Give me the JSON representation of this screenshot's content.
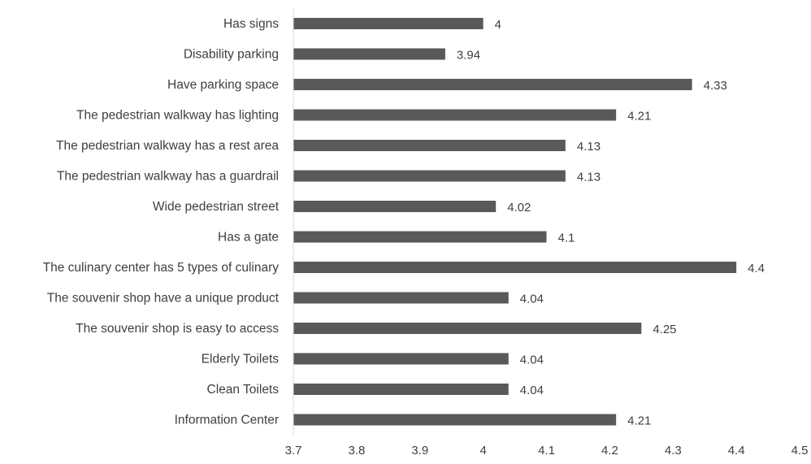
{
  "chart_data": {
    "type": "bar",
    "orientation": "horizontal",
    "title": "",
    "xlabel": "",
    "ylabel": "",
    "categories": [
      "Has signs",
      "Disability parking",
      "Have parking space",
      "The pedestrian walkway has lighting",
      "The pedestrian walkway has a rest area",
      "The pedestrian walkway has a guardrail",
      "Wide pedestrian street",
      "Has a gate",
      "The culinary center has 5 types of culinary",
      "The souvenir shop have a unique product",
      "The souvenir shop is easy to access",
      "Elderly Toilets",
      "Clean Toilets",
      "Information Center"
    ],
    "values": [
      4,
      3.94,
      4.33,
      4.21,
      4.13,
      4.13,
      4.02,
      4.1,
      4.4,
      4.04,
      4.25,
      4.04,
      4.04,
      4.21
    ],
    "value_labels": [
      "4",
      "3.94",
      "4.33",
      "4.21",
      "4.13",
      "4.13",
      "4.02",
      "4.1",
      "4.4",
      "4.04",
      "4.25",
      "4.04",
      "4.04",
      "4.21"
    ],
    "xlim": [
      3.7,
      4.5
    ],
    "xticks": [
      "3.7",
      "3.8",
      "3.9",
      "4",
      "4.1",
      "4.2",
      "4.3",
      "4.4",
      "4.5"
    ],
    "grid": false,
    "legend": "none",
    "bar_color": "#595959",
    "text_color": "#3f3f3f",
    "axis_color": "#d9d9d9"
  }
}
